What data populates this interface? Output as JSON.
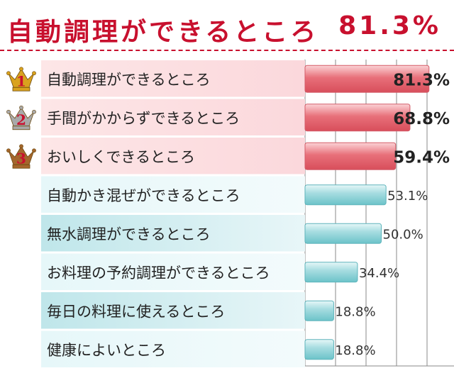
{
  "header": {
    "title": "自動調理ができるところ",
    "value": "81.3%"
  },
  "chart_data": {
    "type": "bar",
    "orientation": "horizontal",
    "title": "自動調理ができるところ",
    "categories": [
      "自動調理ができるところ",
      "手間がかからずできるところ",
      "おいしくできるところ",
      "自動かき混ぜができるところ",
      "無水調理ができるところ",
      "お料理の予約調理ができるところ",
      "毎日の料理に使えるところ",
      "健康によいところ"
    ],
    "values": [
      81.3,
      68.8,
      59.4,
      53.1,
      50.0,
      34.4,
      18.8,
      18.8
    ],
    "value_labels": [
      "81.3%",
      "68.8%",
      "59.4%",
      "53.1%",
      "50.0%",
      "34.4%",
      "18.8%",
      "18.8%"
    ],
    "ranks": [
      "1",
      "2",
      "3"
    ],
    "xlim": [
      0,
      100
    ],
    "grid": true,
    "colors": {
      "top_bar": "#e8707a",
      "top_bar_light": "#fbd3d6",
      "top_label_bg": "#fde6e7",
      "bar": "#6cc3c9",
      "bar_light": "#e6f7f8",
      "label_bg": "#e6f7f9",
      "label_bg_alt": "#bfe6ea",
      "gold": "#d9a21e",
      "silver": "#a9a9a9",
      "bronze": "#a4662c"
    }
  }
}
